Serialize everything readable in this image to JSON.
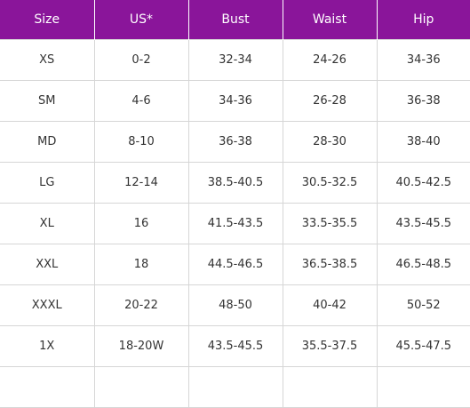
{
  "table": {
    "headers": [
      "Size",
      "US*",
      "Bust",
      "Waist",
      "Hip"
    ],
    "rows": [
      [
        "XS",
        "0-2",
        "32-34",
        "24-26",
        "34-36"
      ],
      [
        "SM",
        "4-6",
        "34-36",
        "26-28",
        "36-38"
      ],
      [
        "MD",
        "8-10",
        "36-38",
        "28-30",
        "38-40"
      ],
      [
        "LG",
        "12-14",
        "38.5-40.5",
        "30.5-32.5",
        "40.5-42.5"
      ],
      [
        "XL",
        "16",
        "41.5-43.5",
        "33.5-35.5",
        "43.5-45.5"
      ],
      [
        "XXL",
        "18",
        "44.5-46.5",
        "36.5-38.5",
        "46.5-48.5"
      ],
      [
        "XXXL",
        "20-22",
        "48-50",
        "40-42",
        "50-52"
      ],
      [
        "1X",
        "18-20W",
        "43.5-45.5",
        "35.5-37.5",
        "45.5-47.5"
      ],
      [
        "",
        "",
        "",
        "",
        ""
      ]
    ]
  },
  "colors": {
    "header_bg": "#8a159a",
    "header_text": "#ffffff",
    "grid": "#d6d6d6"
  }
}
